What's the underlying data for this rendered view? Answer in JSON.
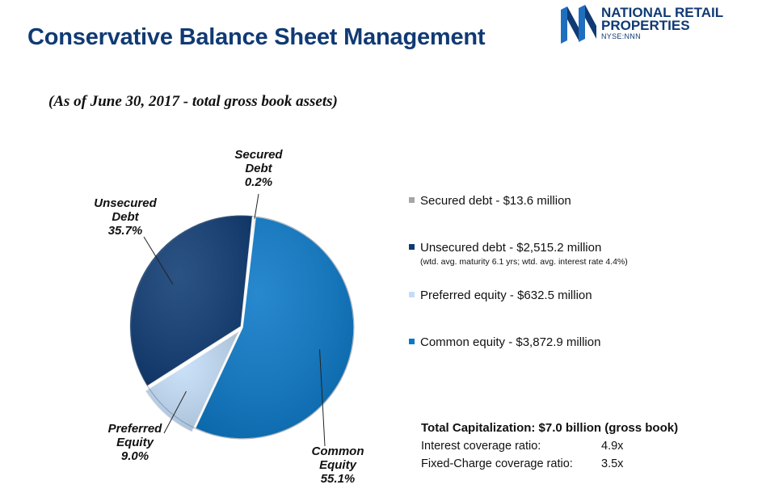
{
  "header": {
    "title": "Conservative Balance Sheet Management",
    "subtitle": "(As of June 30, 2017 - total gross book assets)"
  },
  "logo": {
    "line1": "NATIONAL RETAIL",
    "line2": "PROPERTIES",
    "ticker": "NYSE:NNN",
    "icon": "nn-monogram-icon",
    "color": "#103a74"
  },
  "chart_data": {
    "type": "pie",
    "slices": [
      {
        "name": "Secured Debt",
        "label_lines": [
          "Secured",
          "Debt"
        ],
        "value": 0.2,
        "display": "0.2%",
        "color": "#a6a6a6"
      },
      {
        "name": "Common Equity",
        "label_lines": [
          "Common",
          "Equity"
        ],
        "value": 55.1,
        "display": "55.1%",
        "color": "#0b78c7"
      },
      {
        "name": "Preferred Equity",
        "label_lines": [
          "Preferred",
          "Equity"
        ],
        "value": 9.0,
        "display": "9.0%",
        "color": "#c3ddf8"
      },
      {
        "name": "Unsecured Debt",
        "label_lines": [
          "Unsecured",
          "Debt"
        ],
        "value": 35.7,
        "display": "35.7%",
        "color": "#0e3b73"
      }
    ]
  },
  "legend": [
    {
      "label": "Secured debt - ",
      "value": "$13.6 million",
      "note": "",
      "color": "#a6a6a6"
    },
    {
      "label": "Unsecured debt - ",
      "value": "$2,515.2 million",
      "note": "(wtd. avg. maturity 6.1 yrs; wtd. avg. interest rate 4.4%)",
      "color": "#0e3b73"
    },
    {
      "label": "Preferred equity - ",
      "value": "$632.5 million",
      "note": "",
      "color": "#c3ddf8"
    },
    {
      "label": "Common equity - ",
      "value": "$3,872.9 million",
      "note": "",
      "color": "#0b78c7"
    }
  ],
  "summary": {
    "heading": "Total Capitalization: $7.0 billion (gross book)",
    "rows": [
      {
        "label": "Interest coverage ratio:",
        "value": "4.9x"
      },
      {
        "label": "Fixed-Charge coverage ratio:",
        "value": "3.5x"
      }
    ]
  }
}
